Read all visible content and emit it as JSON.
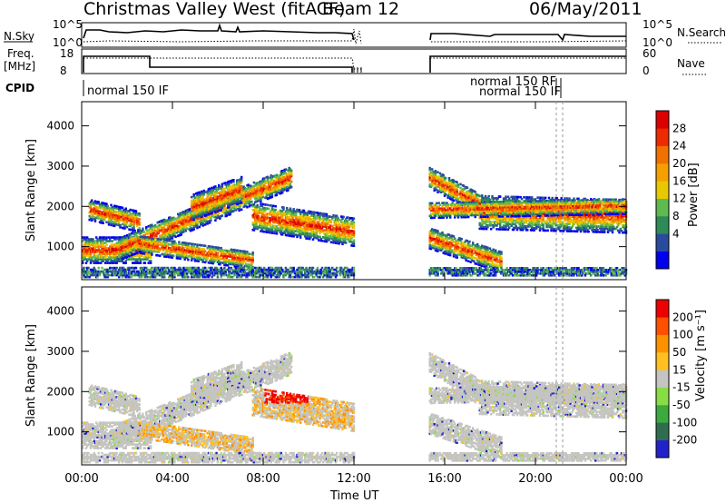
{
  "title": {
    "radar": "Christmas Valley West (fitACF)",
    "beam": "Beam 12",
    "date": "06/May/2011"
  },
  "top_panels": {
    "nsky_label": "N.Sky",
    "nsearch_label": "N.Search",
    "nsky_ticks": [
      "10^5",
      "10^0"
    ],
    "freq_label": "Freq.",
    "freq_unit": "[MHz]",
    "freq_ticks": [
      "18",
      "8"
    ],
    "nave_label": "Nave",
    "nave_ticks": [
      "60",
      "0"
    ],
    "cpid_label": "CPID",
    "cpid_entries": [
      "normal 150 IF",
      "normal 150 RF",
      "normal 150 IF"
    ]
  },
  "x_axis": {
    "label": "Time UT",
    "ticks": [
      "00:00",
      "04:00",
      "08:00",
      "12:00",
      "16:00",
      "20:00",
      "00:00"
    ]
  },
  "colorbars": {
    "power": {
      "label": "Power [dB]",
      "ticks": [
        "28",
        "24",
        "20",
        "16",
        "12",
        "8",
        "4"
      ],
      "colors": [
        "#0000ee",
        "#2a4aa0",
        "#2e8b57",
        "#5fba50",
        "#e8c800",
        "#f5a000",
        "#f07000",
        "#ee2a00",
        "#dd0000"
      ]
    },
    "velocity": {
      "label": "Velocity [m s⁻¹]",
      "ticks": [
        "200",
        "100",
        "50",
        "15",
        "-15",
        "-50",
        "-100",
        "-200"
      ],
      "colors": [
        "#2222cc",
        "#2e6e4e",
        "#3caa3c",
        "#88dd44",
        "#c4c4c0",
        "#ffc020",
        "#ff9000",
        "#ff5000",
        "#ee0000"
      ]
    }
  },
  "chart_data": [
    {
      "type": "heatmap",
      "title": "Power",
      "xlabel": "Time UT",
      "ylabel": "Slant Range [km]",
      "xlim": [
        0,
        24
      ],
      "ylim": [
        180,
        4600
      ],
      "y_ticks": [
        "1000",
        "2000",
        "3000",
        "4000"
      ],
      "colorbar": "Power [dB]",
      "clim": [
        0,
        32
      ],
      "data_gap_hours": [
        12,
        15.3
      ]
    },
    {
      "type": "heatmap",
      "title": "Velocity",
      "xlabel": "Time UT",
      "ylabel": "Slant Range [km]",
      "xlim": [
        0,
        24
      ],
      "ylim": [
        180,
        4600
      ],
      "y_ticks": [
        "1000",
        "2000",
        "3000",
        "4000"
      ],
      "colorbar": "Velocity [m s⁻¹]",
      "clim": [
        -200,
        200
      ],
      "data_gap_hours": [
        12,
        15.3
      ]
    }
  ]
}
